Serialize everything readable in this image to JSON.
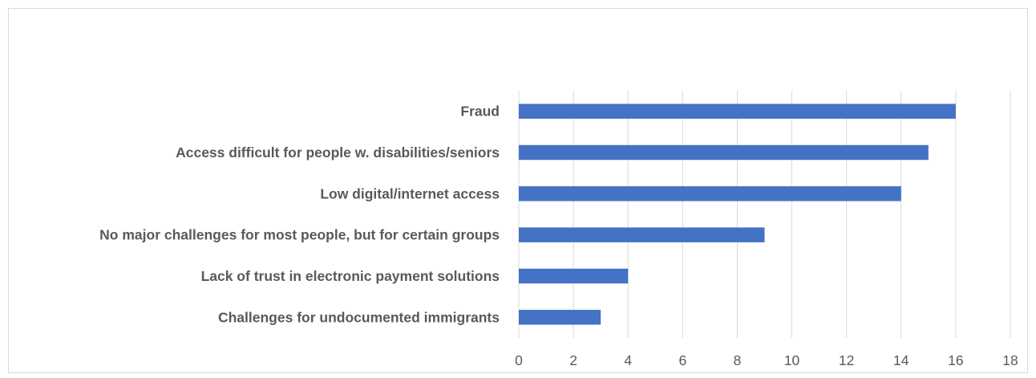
{
  "chart_data": {
    "type": "bar",
    "orientation": "horizontal",
    "categories": [
      "Fraud",
      "Access difficult for people w. disabilities/seniors",
      "Low digital/internet access",
      "No major challenges for most people, but for certain groups",
      "Lack of trust in electronic payment solutions",
      "Challenges for undocumented immigrants"
    ],
    "values": [
      16,
      15,
      14,
      9,
      4,
      3
    ],
    "xlim": [
      0,
      18
    ],
    "xticks": [
      0,
      2,
      4,
      6,
      8,
      10,
      12,
      14,
      16,
      18
    ],
    "title": "",
    "xlabel": "",
    "ylabel": "",
    "grid": "vertical",
    "legend": "none",
    "bar_color": "#4472C4",
    "grid_color": "#d9d9d9"
  }
}
